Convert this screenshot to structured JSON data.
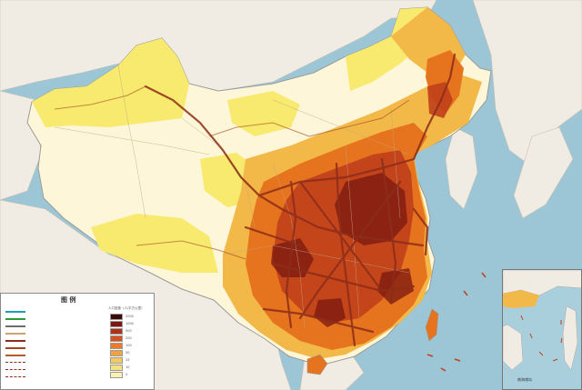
{
  "legend": {
    "title": "图 例",
    "line_items": [
      {
        "label": "",
        "color": "#1aa0b4",
        "style": "solid"
      },
      {
        "label": "",
        "color": "#2e9a3a",
        "style": "solid"
      },
      {
        "label": "",
        "color": "#6d6d6d",
        "style": "solid"
      },
      {
        "label": "",
        "color": "#d2a06e",
        "style": "solid"
      },
      {
        "label": "",
        "color": "#8c2d19",
        "style": "solid"
      },
      {
        "label": "",
        "color": "#a0461e",
        "style": "solid"
      },
      {
        "label": "",
        "color": "#b45a2a",
        "style": "solid"
      },
      {
        "label": "",
        "color": "#8c2d19",
        "style": "dashed"
      },
      {
        "label": "",
        "color": "#8c2d19",
        "style": "dashed"
      },
      {
        "label": "",
        "color": "#8c2d19",
        "style": "dashed"
      }
    ],
    "density_title": "人口密度（人/平方公里）",
    "density_scale": [
      {
        "label": "2000",
        "color": "#3d0a0a"
      },
      {
        "label": "1000",
        "color": "#7a1810"
      },
      {
        "label": "500",
        "color": "#b0301a"
      },
      {
        "label": "200",
        "color": "#d9501f"
      },
      {
        "label": "100",
        "color": "#ec7c2a"
      },
      {
        "label": "50",
        "color": "#f3a23e"
      },
      {
        "label": "25",
        "color": "#f6c95c"
      },
      {
        "label": "10",
        "color": "#f7e37a"
      },
      {
        "label": "5",
        "color": "#fbf3b4"
      },
      {
        "label": "1",
        "color": "#fffce8"
      }
    ],
    "notes": [
      "",
      ""
    ]
  },
  "inset": {
    "label": "南海诸岛"
  },
  "colors": {
    "sea": "#9cc6d6",
    "neighbor_land": "#f0ece4",
    "sparse": "#fdf6d8",
    "low": "#f7ea6e",
    "mid": "#f2b848",
    "high": "#e6731e",
    "very_high": "#c0401a",
    "extreme": "#7a1810",
    "corridor": "#8c2d19",
    "border": "#9b9b9b"
  }
}
